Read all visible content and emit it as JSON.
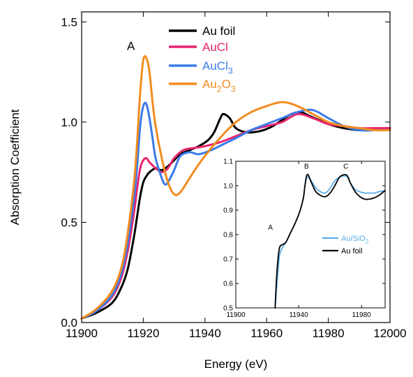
{
  "colors": {
    "au_foil": "#000000",
    "aucl": "#e8246e",
    "aucl3": "#3a7be8",
    "au2o3": "#f28c1e",
    "au_sio2": "#5ab0e8"
  },
  "chart_data": [
    {
      "type": "line",
      "title": "",
      "xlabel": "Energy (eV)",
      "ylabel": "Absorption Coefficient",
      "xlim": [
        11900,
        12000
      ],
      "ylim": [
        0.0,
        1.55
      ],
      "xticks": [
        11900,
        11920,
        11940,
        11960,
        11980,
        12000
      ],
      "xtick_labels": [
        "11900",
        "11920",
        "11940",
        "11960",
        "11980",
        "12000"
      ],
      "yticks": [
        0.0,
        0.5,
        1.0,
        1.5
      ],
      "ytick_labels": [
        "0.0",
        "0.5",
        "1.0",
        "1.5"
      ],
      "grid": false,
      "legend": "top-center",
      "annotations": [
        {
          "text": "A",
          "x": 11916,
          "y": 1.36
        }
      ],
      "series": [
        {
          "name": "Au foil",
          "color": "#000000",
          "x": [
            11900,
            11905,
            11910,
            11913,
            11915,
            11917,
            11918,
            11919,
            11920,
            11921,
            11922,
            11924,
            11926,
            11928,
            11930,
            11932,
            11935,
            11938,
            11941,
            11943,
            11945,
            11946,
            11948,
            11950,
            11953,
            11956,
            11959,
            11962,
            11965,
            11968,
            11971,
            11974,
            11977,
            11980,
            11985,
            11990,
            11995,
            12000
          ],
          "y": [
            0.02,
            0.05,
            0.1,
            0.18,
            0.27,
            0.43,
            0.53,
            0.63,
            0.7,
            0.73,
            0.75,
            0.77,
            0.76,
            0.78,
            0.81,
            0.84,
            0.86,
            0.88,
            0.91,
            0.95,
            1.02,
            1.04,
            1.02,
            0.97,
            0.95,
            0.95,
            0.96,
            0.98,
            1.01,
            1.04,
            1.05,
            1.03,
            1.01,
            0.99,
            0.97,
            0.96,
            0.96,
            0.97
          ]
        },
        {
          "name": "AuCl",
          "color": "#e8246e",
          "x": [
            11900,
            11905,
            11910,
            11913,
            11915,
            11917,
            11918,
            11919,
            11920,
            11921,
            11922,
            11924,
            11926,
            11928,
            11930,
            11933,
            11936,
            11940,
            11945,
            11950,
            11955,
            11960,
            11965,
            11970,
            11975,
            11980,
            11985,
            11990,
            11995,
            12000
          ],
          "y": [
            0.02,
            0.06,
            0.13,
            0.23,
            0.36,
            0.55,
            0.67,
            0.77,
            0.81,
            0.82,
            0.8,
            0.77,
            0.75,
            0.77,
            0.82,
            0.86,
            0.87,
            0.88,
            0.9,
            0.93,
            0.96,
            0.98,
            1.0,
            1.04,
            1.02,
            0.99,
            0.98,
            0.97,
            0.97,
            0.97
          ]
        },
        {
          "name": "AuCl3",
          "color": "#3a7be8",
          "x": [
            11900,
            11905,
            11910,
            11913,
            11915,
            11917,
            11918,
            11919,
            11920,
            11921,
            11922,
            11923,
            11924,
            11926,
            11927,
            11928,
            11930,
            11932,
            11935,
            11938,
            11942,
            11946,
            11950,
            11955,
            11960,
            11965,
            11970,
            11975,
            11980,
            11985,
            11990,
            11995,
            12000
          ],
          "y": [
            0.02,
            0.06,
            0.14,
            0.25,
            0.4,
            0.62,
            0.78,
            0.98,
            1.08,
            1.09,
            1.02,
            0.92,
            0.82,
            0.72,
            0.69,
            0.7,
            0.76,
            0.83,
            0.85,
            0.84,
            0.86,
            0.89,
            0.92,
            0.96,
            0.99,
            1.02,
            1.05,
            1.06,
            1.02,
            0.98,
            0.96,
            0.96,
            0.96
          ]
        },
        {
          "name": "Au2O3",
          "color": "#f28c1e",
          "x": [
            11900,
            11905,
            11910,
            11913,
            11915,
            11917,
            11918,
            11919,
            11920,
            11921,
            11922,
            11923,
            11924,
            11926,
            11928,
            11930,
            11932,
            11935,
            11938,
            11942,
            11946,
            11950,
            11955,
            11960,
            11965,
            11970,
            11975,
            11980,
            11985,
            11990,
            11995,
            12000
          ],
          "y": [
            0.02,
            0.07,
            0.16,
            0.28,
            0.45,
            0.7,
            0.9,
            1.15,
            1.31,
            1.32,
            1.25,
            1.1,
            0.98,
            0.82,
            0.7,
            0.64,
            0.65,
            0.72,
            0.79,
            0.87,
            0.94,
            1.0,
            1.05,
            1.08,
            1.1,
            1.08,
            1.04,
            1.0,
            0.98,
            0.97,
            0.96,
            0.96
          ]
        }
      ],
      "legend_entries": [
        {
          "base": "Au foil",
          "sub1": "",
          "mid": "",
          "sub2": "",
          "color": "#000000"
        },
        {
          "base": "AuCl",
          "sub1": "",
          "mid": "",
          "sub2": "",
          "color": "#e8246e"
        },
        {
          "base": "AuCl",
          "sub1": "3",
          "mid": "",
          "sub2": "",
          "color": "#3a7be8"
        },
        {
          "base": "Au",
          "sub1": "2",
          "mid": "O",
          "sub2": "3",
          "color": "#f28c1e"
        }
      ]
    },
    {
      "type": "line",
      "title": "",
      "xlabel": "",
      "ylabel": "",
      "xlim": [
        11900,
        11995
      ],
      "ylim": [
        0.5,
        1.1
      ],
      "xticks": [
        11900,
        11940,
        11980
      ],
      "xtick_labels": [
        "11900",
        "11940",
        "11980"
      ],
      "yticks": [
        0.5,
        0.6,
        0.7,
        0.8,
        0.9,
        1.0,
        1.1
      ],
      "ytick_labels": [
        "0.5",
        "0.6",
        "0.7",
        "0.8",
        "0.9",
        "1.0",
        "1.1"
      ],
      "grid": false,
      "legend": "center-right",
      "annotations": [
        {
          "text": "A",
          "x": 11922,
          "y": 0.82
        },
        {
          "text": "B",
          "x": 11945,
          "y": 1.07
        },
        {
          "text": "C",
          "x": 11970,
          "y": 1.07
        }
      ],
      "series": [
        {
          "name": "Au/SiO2",
          "color": "#5ab0e8",
          "x": [
            11925,
            11926,
            11927,
            11928,
            11930,
            11932,
            11935,
            11938,
            11941,
            11943,
            11944,
            11945,
            11946,
            11947,
            11949,
            11951,
            11954,
            11957,
            11960,
            11963,
            11966,
            11969,
            11971,
            11973,
            11976,
            11979,
            11982,
            11985,
            11988,
            11991,
            11995
          ],
          "y": [
            0.5,
            0.58,
            0.66,
            0.72,
            0.75,
            0.77,
            0.81,
            0.85,
            0.9,
            0.95,
            1.0,
            1.03,
            1.035,
            1.03,
            1.01,
            0.99,
            0.975,
            0.97,
            0.99,
            1.02,
            1.035,
            1.04,
            1.035,
            1.01,
            0.985,
            0.975,
            0.97,
            0.97,
            0.97,
            0.975,
            0.98
          ]
        },
        {
          "name": "Au foil",
          "color": "#000000",
          "x": [
            11925,
            11926,
            11927,
            11928,
            11930,
            11932,
            11935,
            11938,
            11941,
            11943,
            11944,
            11945,
            11946,
            11947,
            11949,
            11951,
            11954,
            11957,
            11960,
            11963,
            11966,
            11969,
            11971,
            11973,
            11976,
            11979,
            11982,
            11985,
            11988,
            11991,
            11995
          ],
          "y": [
            0.5,
            0.63,
            0.71,
            0.75,
            0.76,
            0.77,
            0.81,
            0.85,
            0.9,
            0.95,
            1.0,
            1.04,
            1.045,
            1.03,
            1.0,
            0.975,
            0.96,
            0.955,
            0.97,
            1.0,
            1.035,
            1.045,
            1.04,
            1.01,
            0.975,
            0.955,
            0.945,
            0.945,
            0.95,
            0.96,
            0.98
          ]
        }
      ],
      "legend_entries": [
        {
          "base": "Au/SiO",
          "sub1": "2",
          "mid": "",
          "sub2": "",
          "color": "#5ab0e8"
        },
        {
          "base": "Au foil",
          "sub1": "",
          "mid": "",
          "sub2": "",
          "color": "#000000"
        }
      ]
    }
  ]
}
